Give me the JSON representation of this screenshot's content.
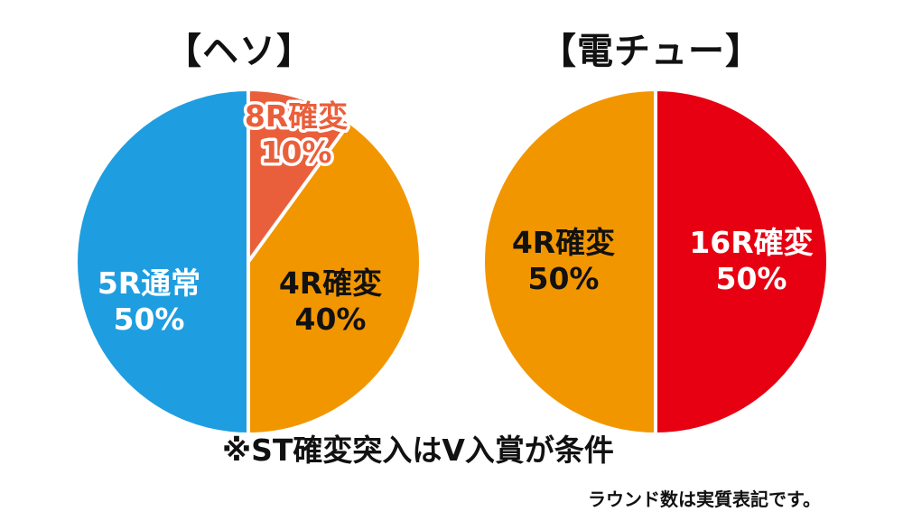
{
  "notes": {
    "condition": "※ST確変突入はV入賞が条件",
    "footnote": "ラウンド数は実質表記です。"
  },
  "chart_data": [
    {
      "type": "pie",
      "title": "【ヘソ】",
      "slices": [
        {
          "label": "8R確変",
          "value": 10,
          "display": "10%",
          "color": "#EA5F3B",
          "label_color": "#ffffff",
          "label_outline": "#EA5F3B"
        },
        {
          "label": "4R確変",
          "value": 40,
          "display": "40%",
          "color": "#F29600",
          "label_color": "#111111",
          "label_outline": "none"
        },
        {
          "label": "5R通常",
          "value": 50,
          "display": "50%",
          "color": "#1E9EE0",
          "label_color": "#ffffff",
          "label_outline": "none"
        }
      ]
    },
    {
      "type": "pie",
      "title": "【電チュー】",
      "slices": [
        {
          "label": "16R確変",
          "value": 50,
          "display": "50%",
          "color": "#E60012",
          "label_color": "#ffffff",
          "label_outline": "none"
        },
        {
          "label": "4R確変",
          "value": 50,
          "display": "50%",
          "color": "#F29600",
          "label_color": "#111111",
          "label_outline": "none"
        }
      ]
    }
  ]
}
